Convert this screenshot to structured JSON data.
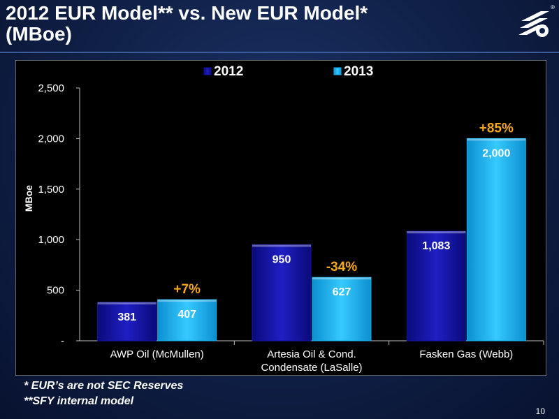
{
  "slide": {
    "title_line1": "2012 EUR Model** vs. New EUR Model*",
    "title_line2": "(MBoe)",
    "footnote1": "*  EUR’s are not SEC Reserves",
    "footnote2": "**SFY internal model",
    "page_number": "10"
  },
  "colors": {
    "series_2012": "#1515a8",
    "series_2013": "#17b4ee",
    "pct_label": "#f5a81c",
    "panel_bg": "#000000"
  },
  "chart_data": {
    "type": "bar",
    "categories": [
      [
        "AWP Oil (McMullen)"
      ],
      [
        "Artesia Oil & Cond.",
        "Condensate (LaSalle)"
      ],
      [
        "Fasken Gas (Webb)"
      ]
    ],
    "series": [
      {
        "name": "2012",
        "values": [
          381,
          950,
          1083
        ],
        "labels": [
          "381",
          "950",
          "1,083"
        ]
      },
      {
        "name": "2013",
        "values": [
          407,
          627,
          2000
        ],
        "labels": [
          "407",
          "627",
          "2,000"
        ]
      }
    ],
    "changes": [
      "+7%",
      "-34%",
      "+85%"
    ],
    "ylabel": "MBoe",
    "ylim": [
      0,
      2500
    ],
    "yticks": [
      0,
      500,
      1000,
      1500,
      2000,
      2500
    ],
    "ytick_labels": [
      "-",
      "500",
      "1,000",
      "1,500",
      "2,000",
      "2,500"
    ],
    "legend_position": "top",
    "grid": false
  }
}
